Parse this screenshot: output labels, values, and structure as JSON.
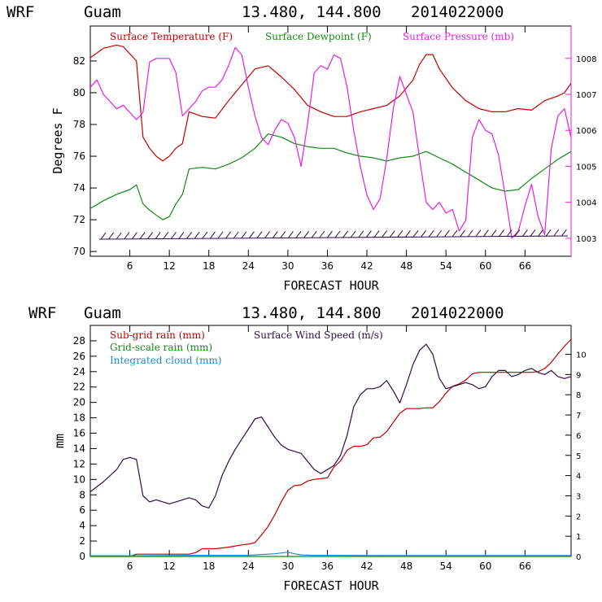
{
  "chart_data": [
    {
      "type": "line",
      "header": {
        "model": "WRF",
        "site": "Guam",
        "coords": "13.480, 144.800",
        "run": "2014022000"
      },
      "xlabel": "FORECAST HOUR",
      "ylabel": "Degrees F",
      "xlim": [
        0,
        73
      ],
      "xticks": [
        "6",
        "12",
        "18",
        "24",
        "30",
        "36",
        "42",
        "48",
        "54",
        "60",
        "66"
      ],
      "ylim": [
        69.7,
        84.2
      ],
      "yticks": [
        "70",
        "72",
        "74",
        "76",
        "78",
        "80",
        "82"
      ],
      "y2lim": [
        1002.5,
        1008.9
      ],
      "y2ticks": [
        "1003",
        "1004",
        "1005",
        "1006",
        "1007",
        "1008"
      ],
      "series": [
        {
          "name": "Surface Temperature (F)",
          "color": "#c00000",
          "axis": "left",
          "x": [
            0,
            2,
            4,
            5,
            7,
            8,
            9,
            10,
            11,
            12,
            13,
            14,
            15,
            17,
            19,
            21,
            23,
            25,
            27,
            29,
            31,
            33,
            35,
            37,
            39,
            41,
            43,
            45,
            47,
            49,
            50,
            51,
            52,
            53,
            55,
            57,
            59,
            61,
            63,
            65,
            67,
            69,
            71,
            72,
            73
          ],
          "values": [
            82.2,
            82.8,
            83.0,
            82.9,
            82.0,
            77.2,
            76.5,
            76.0,
            75.7,
            76.0,
            76.5,
            76.8,
            78.8,
            78.5,
            78.4,
            79.5,
            80.5,
            81.5,
            81.7,
            81.0,
            80.2,
            79.2,
            78.8,
            78.5,
            78.5,
            78.8,
            79.0,
            79.2,
            79.8,
            80.8,
            81.8,
            82.4,
            82.4,
            81.5,
            80.3,
            79.5,
            79.0,
            78.8,
            78.8,
            79.0,
            78.9,
            79.5,
            79.8,
            80.0,
            80.6
          ]
        },
        {
          "name": "Surface Dewpoint (F)",
          "color": "#138a13",
          "axis": "left",
          "x": [
            0,
            2,
            4,
            6,
            7,
            8,
            9,
            10,
            11,
            12,
            13,
            14,
            15,
            17,
            19,
            21,
            23,
            25,
            27,
            29,
            31,
            33,
            35,
            37,
            39,
            41,
            43,
            45,
            47,
            49,
            51,
            53,
            55,
            57,
            59,
            61,
            63,
            65,
            67,
            69,
            71,
            73
          ],
          "values": [
            72.7,
            73.2,
            73.6,
            73.9,
            74.2,
            73.0,
            72.6,
            72.3,
            72.0,
            72.2,
            73.0,
            73.6,
            75.2,
            75.3,
            75.2,
            75.5,
            75.9,
            76.5,
            77.4,
            77.2,
            76.8,
            76.6,
            76.5,
            76.5,
            76.2,
            76.0,
            75.9,
            75.7,
            75.9,
            76.0,
            76.3,
            75.9,
            75.5,
            75.0,
            74.5,
            74.0,
            73.8,
            73.9,
            74.6,
            75.2,
            75.8,
            76.3
          ]
        },
        {
          "name": "Surface Pressure (mb)",
          "color": "#e61ee6",
          "axis": "right",
          "x": [
            0,
            1,
            2,
            3,
            4,
            5,
            6,
            7,
            8,
            9,
            10,
            11,
            12,
            13,
            14,
            15,
            16,
            17,
            18,
            19,
            20,
            21,
            22,
            23,
            24,
            25,
            26,
            27,
            28,
            29,
            30,
            31,
            32,
            33,
            34,
            35,
            36,
            37,
            38,
            39,
            40,
            41,
            42,
            43,
            44,
            45,
            46,
            47,
            48,
            49,
            50,
            51,
            52,
            53,
            54,
            55,
            56,
            57,
            58,
            59,
            60,
            61,
            62,
            63,
            64,
            65,
            66,
            67,
            68,
            69,
            70,
            71,
            72,
            73
          ],
          "values": [
            1007.2,
            1007.4,
            1007.0,
            1006.8,
            1006.6,
            1006.7,
            1006.5,
            1006.3,
            1006.5,
            1007.9,
            1008.0,
            1008.0,
            1008.0,
            1007.6,
            1006.4,
            1006.6,
            1006.8,
            1007.1,
            1007.2,
            1007.2,
            1007.4,
            1007.8,
            1008.3,
            1008.1,
            1007.2,
            1006.4,
            1005.8,
            1005.6,
            1006.0,
            1006.3,
            1006.2,
            1005.8,
            1005.0,
            1006.2,
            1007.6,
            1007.8,
            1007.7,
            1008.1,
            1008.0,
            1007.2,
            1006.0,
            1005.0,
            1004.2,
            1003.8,
            1004.1,
            1005.2,
            1006.6,
            1007.5,
            1007.0,
            1006.5,
            1005.2,
            1004.0,
            1003.8,
            1004.0,
            1003.7,
            1003.8,
            1003.2,
            1003.5,
            1005.8,
            1006.3,
            1006.0,
            1005.9,
            1005.3,
            1004.2,
            1003.0,
            1003.2,
            1003.9,
            1004.5,
            1003.6,
            1003.1,
            1005.5,
            1006.4,
            1006.6,
            1005.8
          ]
        }
      ]
    },
    {
      "type": "line",
      "header": {
        "model": "WRF",
        "site": "Guam",
        "coords": "13.480, 144.800",
        "run": "2014022000"
      },
      "xlabel": "FORECAST HOUR",
      "ylabel": "mm",
      "xlim": [
        0,
        73
      ],
      "xticks": [
        "6",
        "12",
        "18",
        "24",
        "30",
        "36",
        "42",
        "48",
        "54",
        "60",
        "66"
      ],
      "ylim": [
        0,
        30
      ],
      "yticks": [
        "0",
        "2",
        "4",
        "6",
        "8",
        "10",
        "12",
        "14",
        "16",
        "18",
        "20",
        "22",
        "24",
        "26",
        "28"
      ],
      "y2lim": [
        0,
        11.43
      ],
      "y2ticks": [
        "0",
        "1",
        "2",
        "3",
        "4",
        "5",
        "6",
        "7",
        "8",
        "9",
        "10"
      ],
      "series": [
        {
          "name": "Sub-grid rain (mm)",
          "color": "#c00000",
          "axis": "left",
          "x": [
            0,
            6,
            7,
            15,
            16,
            17,
            19,
            21,
            23,
            24,
            25,
            26,
            27,
            28,
            29,
            30,
            31,
            32,
            33,
            34,
            35,
            36,
            37,
            38,
            39,
            40,
            41,
            42,
            43,
            44,
            45,
            46,
            47,
            48,
            49,
            50,
            51,
            52,
            53,
            54,
            55,
            56,
            57,
            58,
            59,
            60,
            61,
            62,
            63,
            64,
            65,
            66,
            67,
            68,
            69,
            70,
            71,
            72,
            73
          ],
          "values": [
            0,
            0,
            0.3,
            0.3,
            0.5,
            1.0,
            1.0,
            1.2,
            1.5,
            1.6,
            1.8,
            2.8,
            3.9,
            5.4,
            7.1,
            8.6,
            9.2,
            9.3,
            9.8,
            10.0,
            10.1,
            10.2,
            11.6,
            12.4,
            13.8,
            14.3,
            14.3,
            14.5,
            15.4,
            15.5,
            16.2,
            17.4,
            18.6,
            19.2,
            19.2,
            19.2,
            19.3,
            19.3,
            20.1,
            21.2,
            22.1,
            22.4,
            22.9,
            23.7,
            23.9,
            23.9,
            23.9,
            23.9,
            23.9,
            23.9,
            23.9,
            23.9,
            23.9,
            24.0,
            24.4,
            25.2,
            26.3,
            27.3,
            28.2
          ]
        },
        {
          "name": "Grid-scale rain (mm)",
          "color": "#138a13",
          "axis": "left",
          "x": [
            0,
            73
          ],
          "values": [
            0,
            0
          ]
        },
        {
          "name": "Integrated cloud (mm)",
          "color": "#1c8bd6",
          "axis": "left",
          "x": [
            0,
            8,
            16,
            24,
            26,
            28,
            30,
            31,
            32,
            34,
            36,
            44,
            52,
            60,
            68,
            73
          ],
          "values": [
            0.1,
            0.1,
            0.15,
            0.15,
            0.25,
            0.35,
            0.55,
            0.35,
            0.2,
            0.15,
            0.15,
            0.12,
            0.12,
            0.12,
            0.12,
            0.12
          ]
        },
        {
          "name": "Surface Wind Speed (m/s)",
          "color": "#2e0c4a",
          "axis": "right",
          "x": [
            0,
            2,
            4,
            5,
            6,
            7,
            8,
            9,
            10,
            11,
            12,
            13,
            14,
            15,
            16,
            17,
            18,
            19,
            20,
            21,
            22,
            23,
            24,
            25,
            26,
            27,
            28,
            29,
            30,
            31,
            32,
            33,
            34,
            35,
            36,
            37,
            38,
            39,
            40,
            41,
            42,
            43,
            44,
            45,
            46,
            47,
            48,
            49,
            50,
            51,
            52,
            53,
            54,
            55,
            56,
            57,
            58,
            59,
            60,
            61,
            62,
            63,
            64,
            65,
            66,
            67,
            68,
            69,
            70,
            71,
            72,
            73
          ],
          "values": [
            3.2,
            3.7,
            4.3,
            4.8,
            4.9,
            4.8,
            3.0,
            2.7,
            2.8,
            2.7,
            2.6,
            2.7,
            2.8,
            2.9,
            2.8,
            2.5,
            2.4,
            3.0,
            4.0,
            4.7,
            5.3,
            5.8,
            6.3,
            6.8,
            6.9,
            6.4,
            5.9,
            5.5,
            5.3,
            5.2,
            5.1,
            4.7,
            4.3,
            4.1,
            4.3,
            4.5,
            5.0,
            6.0,
            7.4,
            8.0,
            8.3,
            8.3,
            8.4,
            8.7,
            8.2,
            7.6,
            8.5,
            9.5,
            10.2,
            10.5,
            10.0,
            8.8,
            8.3,
            8.4,
            8.5,
            8.6,
            8.5,
            8.3,
            8.4,
            8.9,
            9.2,
            9.2,
            8.9,
            9.0,
            9.2,
            9.3,
            9.1,
            9.0,
            9.2,
            8.9,
            8.8,
            8.9
          ]
        }
      ]
    }
  ]
}
